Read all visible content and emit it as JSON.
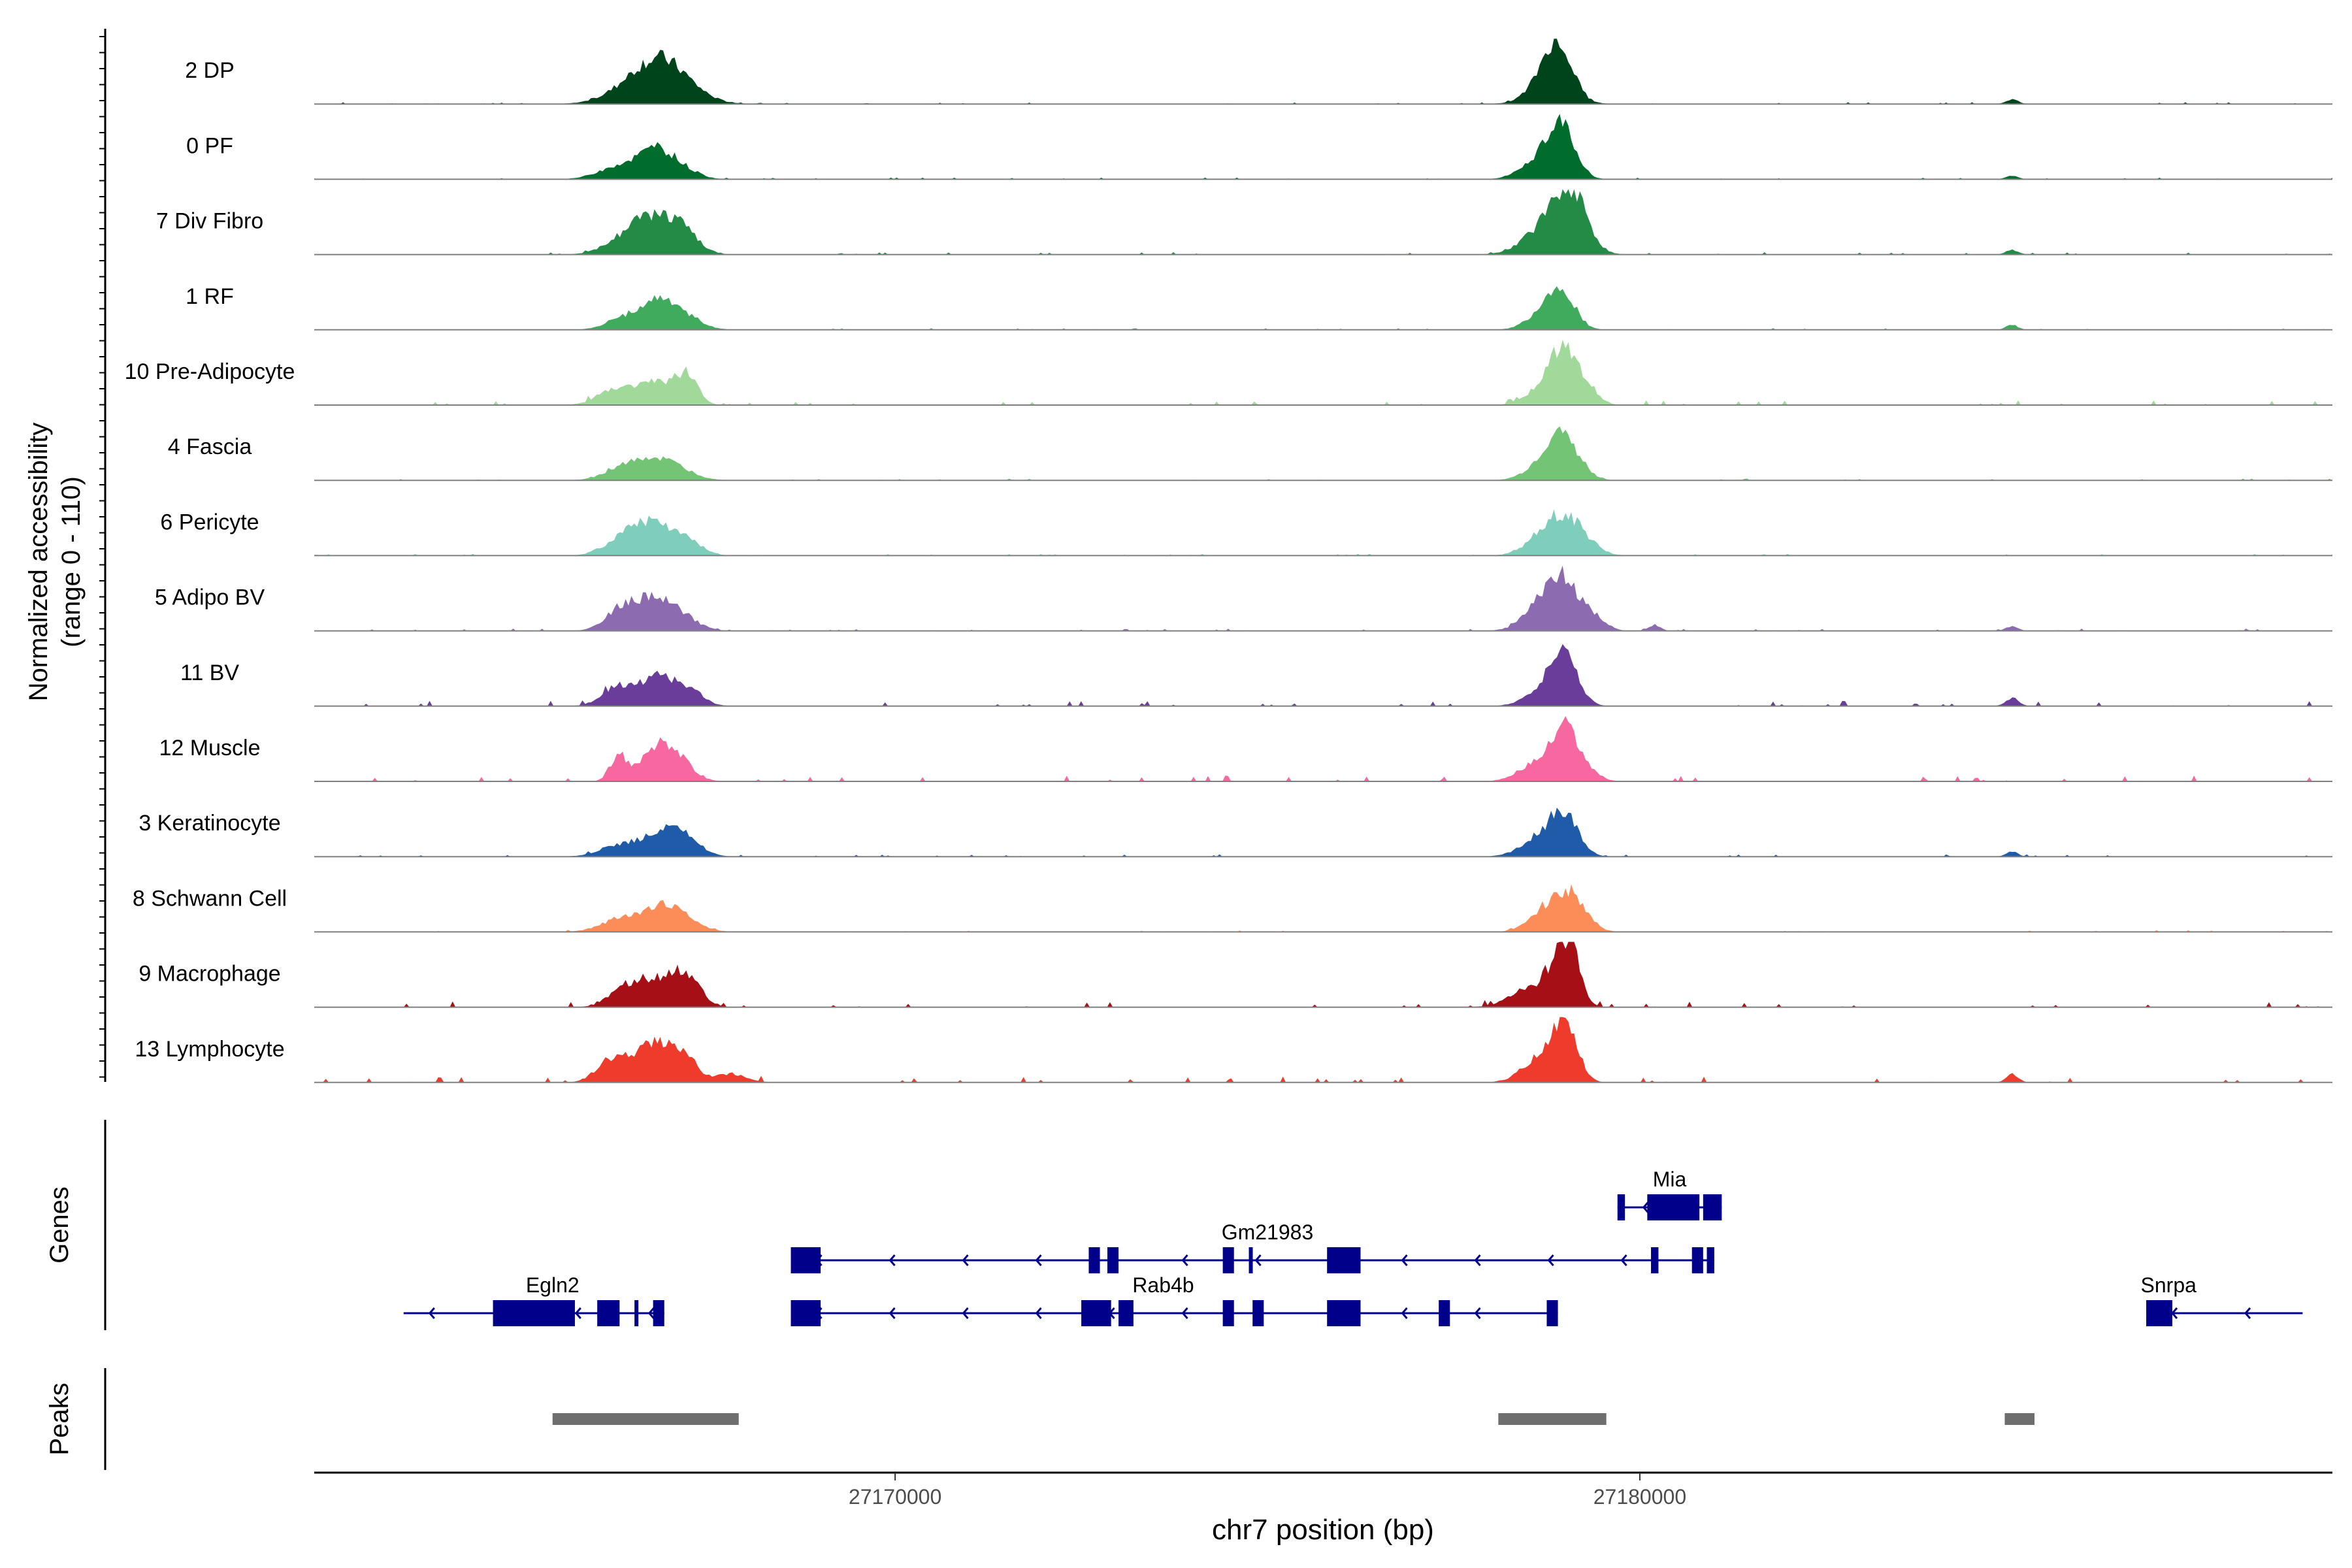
{
  "chart_data": {
    "type": "area",
    "title": "",
    "xlabel": "chr7 position (bp)",
    "ylabel": "Normalized accessibility",
    "ylabel_range": "(range 0 - 110)",
    "ylim": [
      0,
      110
    ],
    "xlim": [
      27162200,
      27189300
    ],
    "x_ticks": [
      {
        "value": 27170000,
        "label": "27170000"
      },
      {
        "value": 27180000,
        "label": "27180000"
      }
    ],
    "panel_labels": {
      "genes": "Genes",
      "peaks": "Peaks"
    },
    "tracks": [
      {
        "name": "2 DP",
        "color": "#00441b",
        "peaks": [
          [
            27166500,
            350,
            28
          ],
          [
            27166800,
            300,
            40
          ],
          [
            27167100,
            320,
            30
          ],
          [
            27178800,
            260,
            42
          ],
          [
            27178900,
            180,
            72
          ],
          [
            27185000,
            80,
            8
          ]
        ],
        "noise": 3
      },
      {
        "name": "0 PF",
        "color": "#006d2c",
        "peaks": [
          [
            27166300,
            280,
            22
          ],
          [
            27166750,
            220,
            30
          ],
          [
            27167000,
            260,
            26
          ],
          [
            27178700,
            260,
            35
          ],
          [
            27178950,
            180,
            72
          ],
          [
            27185000,
            80,
            6
          ]
        ],
        "noise": 3
      },
      {
        "name": "7 Div Fibro",
        "color": "#238b45",
        "peaks": [
          [
            27166500,
            300,
            40
          ],
          [
            27166900,
            260,
            45
          ],
          [
            27167200,
            200,
            20
          ],
          [
            27178800,
            300,
            55
          ],
          [
            27179100,
            200,
            80
          ],
          [
            27185000,
            80,
            8
          ]
        ],
        "noise": 4
      },
      {
        "name": "1 RF",
        "color": "#41ab5d",
        "peaks": [
          [
            27166400,
            250,
            20
          ],
          [
            27166800,
            220,
            34
          ],
          [
            27167100,
            250,
            26
          ],
          [
            27178700,
            220,
            25
          ],
          [
            27178950,
            180,
            60
          ],
          [
            27185000,
            80,
            8
          ]
        ],
        "noise": 3
      },
      {
        "name": "10 Pre-Adipocyte",
        "color": "#a1d99b",
        "peaks": [
          [
            27166300,
            250,
            30
          ],
          [
            27166800,
            200,
            38
          ],
          [
            27167200,
            150,
            50
          ],
          [
            27178800,
            250,
            40
          ],
          [
            27179000,
            160,
            70
          ],
          [
            27179300,
            150,
            25
          ]
        ],
        "noise": 8
      },
      {
        "name": "4 Fascia",
        "color": "#74c476",
        "peaks": [
          [
            27166400,
            260,
            25
          ],
          [
            27166900,
            300,
            30
          ],
          [
            27178800,
            260,
            35
          ],
          [
            27179000,
            200,
            50
          ]
        ],
        "noise": 3
      },
      {
        "name": "6 Pericyte",
        "color": "#7fcdbb",
        "peaks": [
          [
            27166400,
            260,
            35
          ],
          [
            27166800,
            220,
            45
          ],
          [
            27167200,
            200,
            25
          ],
          [
            27178800,
            260,
            45
          ],
          [
            27179100,
            240,
            40
          ]
        ],
        "noise": 3
      },
      {
        "name": "5 Adipo BV",
        "color": "#8c6bb1",
        "peaks": [
          [
            27166350,
            220,
            40
          ],
          [
            27166800,
            220,
            48
          ],
          [
            27167150,
            220,
            20
          ],
          [
            27178700,
            240,
            45
          ],
          [
            27179000,
            200,
            72
          ],
          [
            27179400,
            150,
            20
          ],
          [
            27180200,
            80,
            10
          ],
          [
            27185000,
            80,
            8
          ]
        ],
        "noise": 4
      },
      {
        "name": "11 BV",
        "color": "#6a3d9a",
        "peaks": [
          [
            27166300,
            220,
            35
          ],
          [
            27166800,
            200,
            45
          ],
          [
            27167200,
            200,
            30
          ],
          [
            27178800,
            260,
            40
          ],
          [
            27179000,
            160,
            70
          ],
          [
            27185000,
            90,
            14
          ]
        ],
        "noise": 9
      },
      {
        "name": "12 Muscle",
        "color": "#f768a1",
        "peaks": [
          [
            27166300,
            120,
            40
          ],
          [
            27166800,
            200,
            55
          ],
          [
            27167100,
            200,
            30
          ],
          [
            27178700,
            260,
            40
          ],
          [
            27179000,
            140,
            85
          ],
          [
            27179300,
            150,
            20
          ]
        ],
        "noise": 10
      },
      {
        "name": "3 Keratinocyte",
        "color": "#1f5ba8",
        "peaks": [
          [
            27166300,
            260,
            20
          ],
          [
            27166800,
            220,
            30
          ],
          [
            27167150,
            220,
            35
          ],
          [
            27178700,
            260,
            35
          ],
          [
            27179000,
            180,
            60
          ],
          [
            27185000,
            80,
            8
          ]
        ],
        "noise": 4
      },
      {
        "name": "8 Schwann Cell",
        "color": "#fc8d59",
        "peaks": [
          [
            27166300,
            260,
            20
          ],
          [
            27166800,
            260,
            30
          ],
          [
            27167100,
            250,
            22
          ],
          [
            27178800,
            240,
            40
          ],
          [
            27179100,
            200,
            48
          ]
        ],
        "noise": 3
      },
      {
        "name": "9 Macrophage",
        "color": "#a50f15",
        "peaks": [
          [
            27166400,
            220,
            35
          ],
          [
            27166800,
            200,
            40
          ],
          [
            27167200,
            180,
            55
          ],
          [
            27178500,
            260,
            30
          ],
          [
            27178900,
            140,
            70
          ],
          [
            27179100,
            130,
            75
          ]
        ],
        "noise": 10
      },
      {
        "name": "13 Lymphocyte",
        "color": "#ef3b2c",
        "peaks": [
          [
            27166200,
            200,
            40
          ],
          [
            27166700,
            200,
            60
          ],
          [
            27167100,
            200,
            55
          ],
          [
            27167800,
            200,
            15
          ],
          [
            27178700,
            250,
            45
          ],
          [
            27179000,
            160,
            90
          ],
          [
            27185000,
            80,
            14
          ]
        ],
        "noise": 10
      }
    ],
    "genes": [
      {
        "name": "Egln2",
        "label_pos": 27165400,
        "row": 2,
        "start": 27163400,
        "end": 27166900,
        "exons": [
          [
            27164600,
            27165700
          ],
          [
            27166000,
            27166300
          ],
          [
            27166500,
            27166550
          ],
          [
            27166750,
            27166900
          ]
        ]
      },
      {
        "name": "Rab4b",
        "label_pos": 27173600,
        "row": 2,
        "start": 27168600,
        "end": 27178900,
        "exons": [
          [
            27168600,
            27169000
          ],
          [
            27172500,
            27172900
          ],
          [
            27173000,
            27173200
          ],
          [
            27174400,
            27174550
          ],
          [
            27174800,
            27174950
          ],
          [
            27175800,
            27176250
          ],
          [
            27177300,
            27177450
          ],
          [
            27178750,
            27178900
          ]
        ]
      },
      {
        "name": "Gm21983",
        "label_pos": 27175000,
        "row": 1,
        "start": 27168600,
        "end": 27181000,
        "exons": [
          [
            27168600,
            27169000
          ],
          [
            27172600,
            27172750
          ],
          [
            27172850,
            27173000
          ],
          [
            27174400,
            27174550
          ],
          [
            27174750,
            27174800
          ],
          [
            27175800,
            27176250
          ],
          [
            27180150,
            27180250
          ],
          [
            27180700,
            27180850
          ],
          [
            27180900,
            27181000
          ]
        ]
      },
      {
        "name": "Mia",
        "label_pos": 27180400,
        "row": 0,
        "start": 27179700,
        "end": 27181100,
        "exons": [
          [
            27179700,
            27179800
          ],
          [
            27180100,
            27180800
          ],
          [
            27180850,
            27181100
          ]
        ]
      },
      {
        "name": "Snrpa",
        "label_pos": 27187100,
        "row": 2,
        "start": 27186800,
        "end": 27188900,
        "exons": [
          [
            27186800,
            27187150
          ]
        ]
      }
    ],
    "peaks": [
      [
        27165400,
        27167900
      ],
      [
        27178100,
        27179550
      ],
      [
        27184900,
        27185300
      ]
    ]
  }
}
